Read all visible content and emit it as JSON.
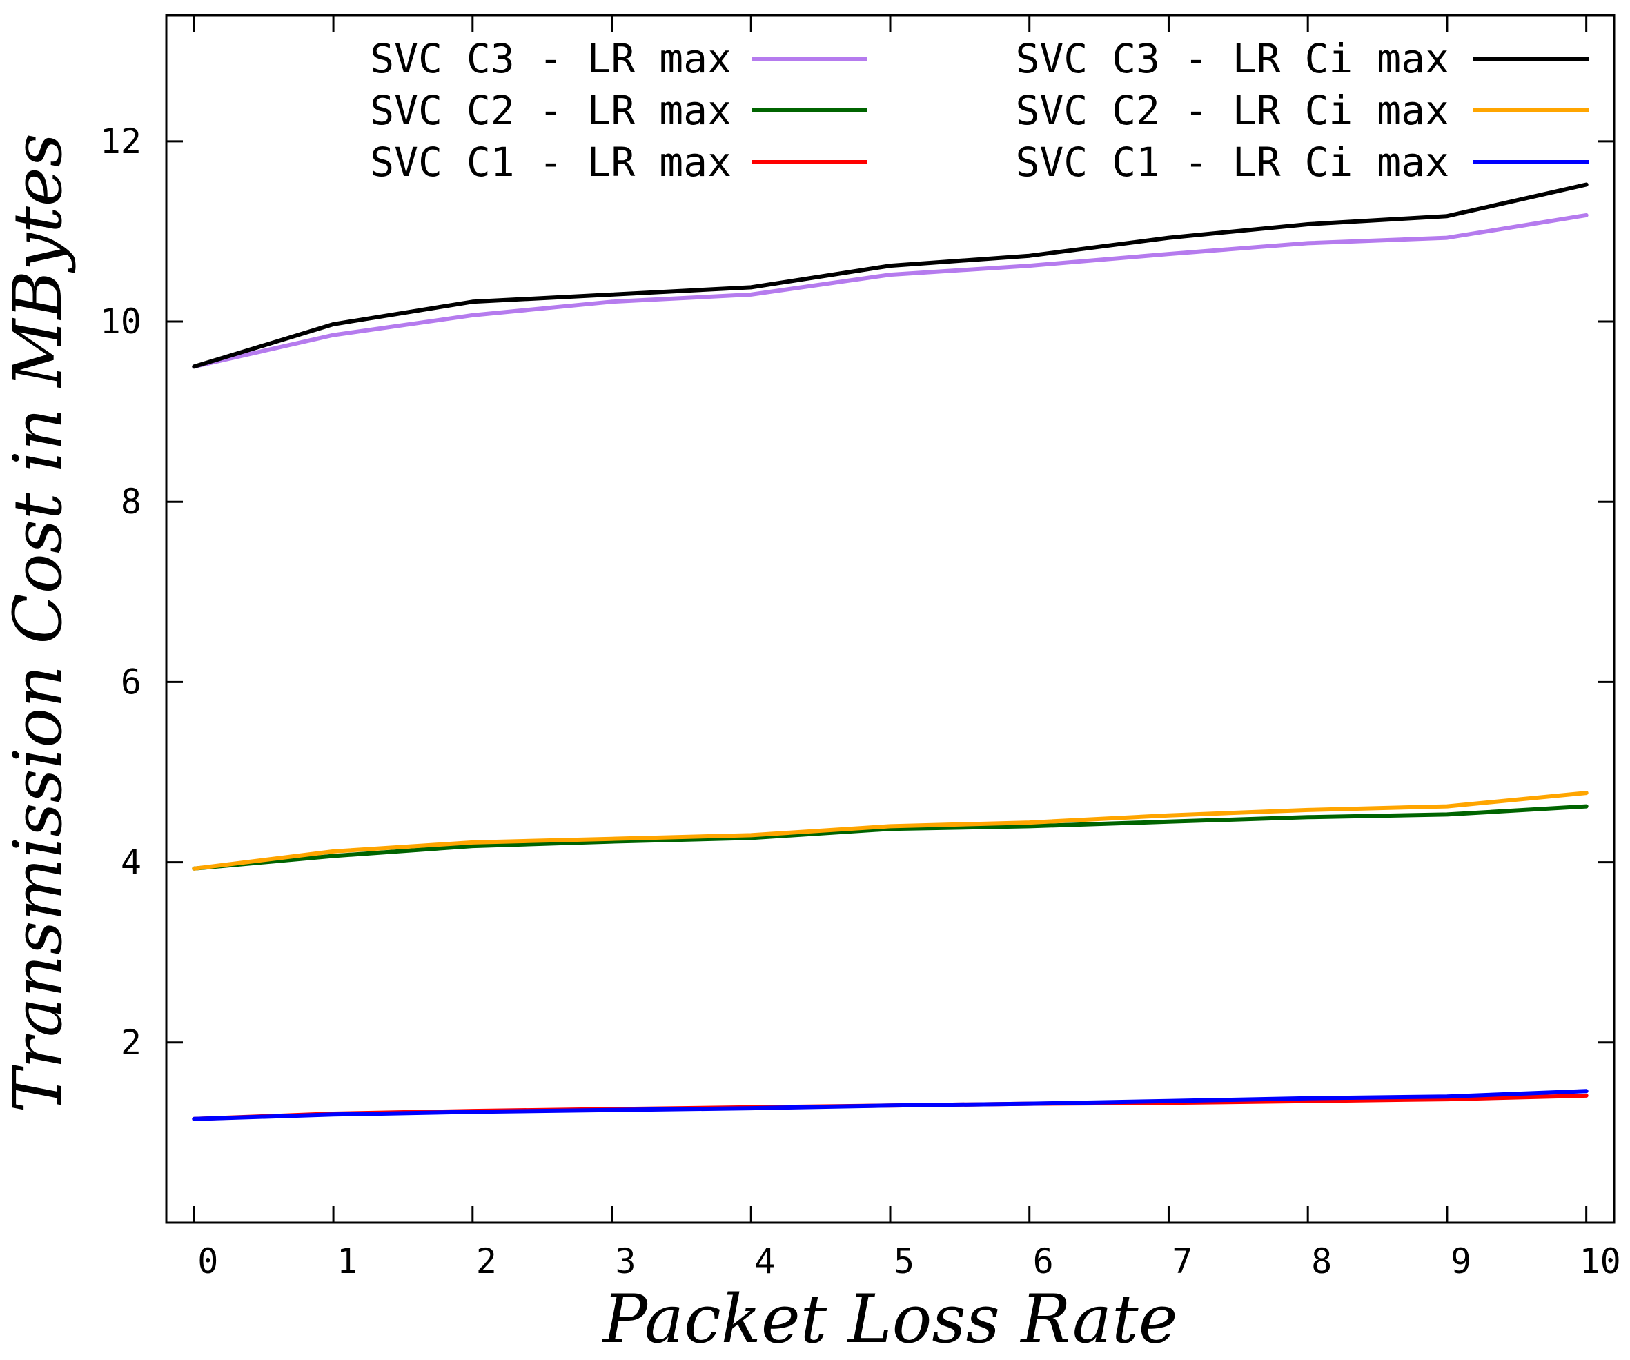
{
  "chart_data": {
    "type": "line",
    "title": "",
    "xlabel": "Packet Loss Rate",
    "ylabel": "Transmission Cost in MBytes",
    "xlim": [
      -0.2,
      10.2
    ],
    "ylim": [
      0,
      13.4
    ],
    "xticks": [
      0,
      1,
      2,
      3,
      4,
      5,
      6,
      7,
      8,
      9,
      10
    ],
    "yticks": [
      2,
      4,
      6,
      8,
      10,
      12
    ],
    "grid": false,
    "legend_position": "top-right",
    "x": [
      0,
      1,
      2,
      3,
      4,
      5,
      6,
      7,
      8,
      9,
      10
    ],
    "series": [
      {
        "name": "SVC C3 - LR max",
        "color": "#b57bee",
        "values": [
          9.5,
          9.85,
          10.07,
          10.22,
          10.3,
          10.52,
          10.62,
          10.75,
          10.87,
          10.93,
          11.18
        ]
      },
      {
        "name": "SVC C3 - LR Ci max",
        "color": "#000000",
        "values": [
          9.5,
          9.97,
          10.22,
          10.3,
          10.38,
          10.62,
          10.73,
          10.93,
          11.08,
          11.17,
          11.52
        ]
      },
      {
        "name": "SVC C2 - LR max",
        "color": "#006400",
        "values": [
          3.93,
          4.07,
          4.18,
          4.23,
          4.27,
          4.37,
          4.4,
          4.45,
          4.5,
          4.53,
          4.62
        ]
      },
      {
        "name": "SVC C2 - LR Ci max",
        "color": "#ffa500",
        "values": [
          3.93,
          4.12,
          4.22,
          4.26,
          4.3,
          4.4,
          4.44,
          4.52,
          4.58,
          4.62,
          4.77
        ]
      },
      {
        "name": "SVC C1 - LR max",
        "color": "#ff0000",
        "values": [
          1.15,
          1.21,
          1.24,
          1.26,
          1.28,
          1.3,
          1.32,
          1.33,
          1.35,
          1.37,
          1.41
        ]
      },
      {
        "name": "SVC C1 - LR Ci max",
        "color": "#0000ff",
        "values": [
          1.15,
          1.2,
          1.23,
          1.25,
          1.27,
          1.3,
          1.32,
          1.35,
          1.38,
          1.4,
          1.46
        ]
      }
    ]
  }
}
